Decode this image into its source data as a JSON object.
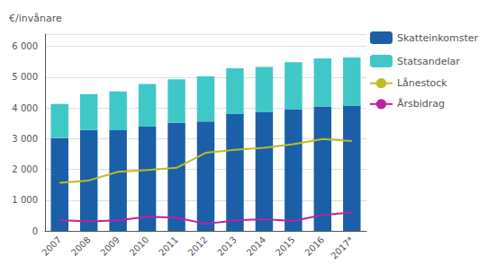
{
  "chart_data": {
    "type": "bar",
    "stacked": true,
    "categories": [
      "2007",
      "2008",
      "2009",
      "2010",
      "2011",
      "2012",
      "2013",
      "2014",
      "2015",
      "2016",
      "2017*"
    ],
    "ylabel": "€/invånare",
    "ylim": [
      0,
      6400
    ],
    "yticks": [
      0,
      {
        "value": 1000,
        "label": "1 000"
      },
      {
        "value": 2000,
        "label": "2 000"
      },
      {
        "value": 3000,
        "label": "3 000"
      },
      {
        "value": 4000,
        "label": "4 000"
      },
      {
        "value": 5000,
        "label": "5 000"
      },
      {
        "value": 6000,
        "label": "6 000"
      }
    ],
    "grid": true,
    "legend": "right",
    "series": [
      {
        "name": "Skatteinkomster",
        "type": "bar",
        "color": "#1A5FA8",
        "values": [
          3020,
          3280,
          3270,
          3390,
          3510,
          3560,
          3800,
          3860,
          3960,
          4050,
          4080
        ]
      },
      {
        "name": "Statsandelar",
        "type": "bar",
        "color": "#40C8C8",
        "values": [
          1110,
          1170,
          1270,
          1390,
          1420,
          1470,
          1490,
          1470,
          1530,
          1560,
          1560
        ]
      },
      {
        "name": "Lånestock",
        "type": "line",
        "color": "#BCBD22",
        "values": [
          1560,
          1640,
          1920,
          1980,
          2050,
          2540,
          2640,
          2700,
          2820,
          2990,
          2920
        ]
      },
      {
        "name": "Årsbidrag",
        "type": "line",
        "color": "#C020A0",
        "values": [
          350,
          310,
          340,
          460,
          430,
          230,
          340,
          380,
          320,
          520,
          600
        ]
      }
    ]
  }
}
